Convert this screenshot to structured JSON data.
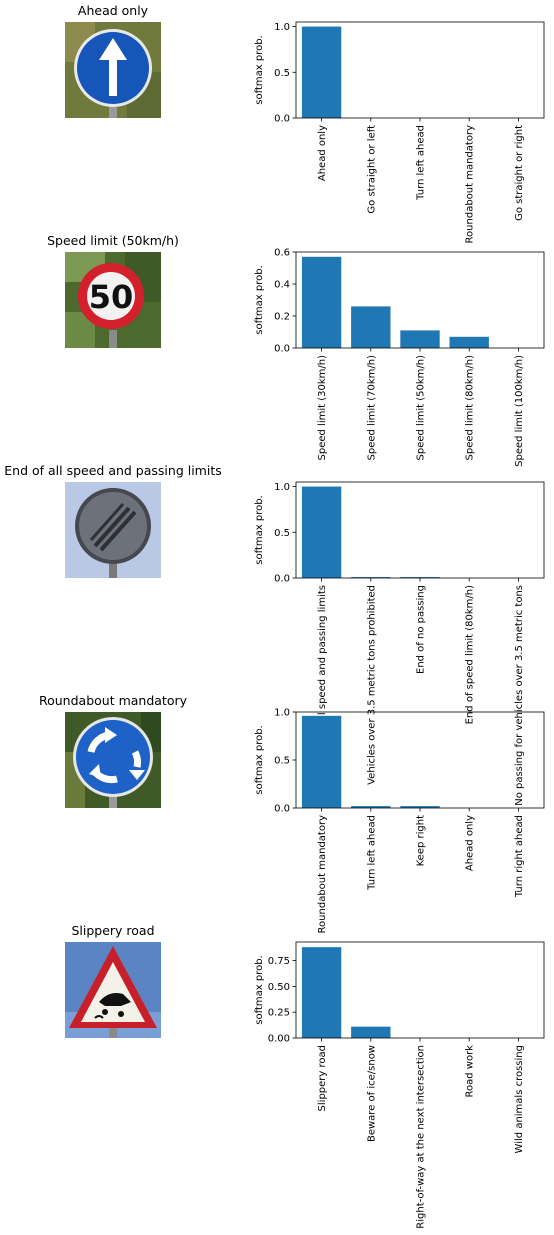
{
  "chart_data": [
    {
      "type": "bar",
      "image_title": "Ahead only",
      "sign_icon": "ahead-only-sign-icon",
      "ylabel": "softmax prob.",
      "ylim": [
        0,
        1.05
      ],
      "yticks": [
        0,
        0.5,
        1
      ],
      "ytick_labels": [
        "0.0",
        "0.5",
        "1.0"
      ],
      "categories": [
        "Ahead only",
        "Go straight or left",
        "Turn left ahead",
        "Roundabout mandatory",
        "Go straight or right"
      ],
      "values": [
        1.0,
        0.0,
        0.0,
        0.0,
        0.0
      ]
    },
    {
      "type": "bar",
      "image_title": "Speed limit (50km/h)",
      "sign_icon": "speed-limit-50-sign-icon",
      "ylabel": "softmax prob.",
      "ylim": [
        0,
        0.6
      ],
      "yticks": [
        0,
        0.2,
        0.4,
        0.6
      ],
      "ytick_labels": [
        "0.0",
        "0.2",
        "0.4",
        "0.6"
      ],
      "categories": [
        "Speed limit (30km/h)",
        "Speed limit (70km/h)",
        "Speed limit (50km/h)",
        "Speed limit (80km/h)",
        "Speed limit (100km/h)"
      ],
      "values": [
        0.57,
        0.26,
        0.11,
        0.07,
        0.0
      ]
    },
    {
      "type": "bar",
      "image_title": "End of all speed and passing limits",
      "sign_icon": "end-of-limits-sign-icon",
      "ylabel": "softmax prob.",
      "ylim": [
        0,
        1.05
      ],
      "yticks": [
        0,
        0.5,
        1
      ],
      "ytick_labels": [
        "0.0",
        "0.5",
        "1.0"
      ],
      "categories": [
        "End of all speed and passing limits",
        "Vehicles over 3.5 metric tons prohibited",
        "End of no passing",
        "End of speed limit (80km/h)",
        "No passing for vehicles over 3.5 metric tons"
      ],
      "values": [
        1.0,
        0.01,
        0.01,
        0.0,
        0.0
      ]
    },
    {
      "type": "bar",
      "image_title": "Roundabout mandatory",
      "sign_icon": "roundabout-sign-icon",
      "ylabel": "softmax prob.",
      "ylim": [
        0,
        1.0
      ],
      "yticks": [
        0,
        0.5,
        1
      ],
      "ytick_labels": [
        "0.0",
        "0.5",
        "1.0"
      ],
      "categories": [
        "Roundabout mandatory",
        "Turn left ahead",
        "Keep right",
        "Ahead only",
        "Turn right ahead"
      ],
      "values": [
        0.96,
        0.02,
        0.02,
        0.0,
        0.0
      ]
    },
    {
      "type": "bar",
      "image_title": "Slippery road",
      "sign_icon": "slippery-road-sign-icon",
      "ylabel": "softmax prob.",
      "ylim": [
        0,
        0.93
      ],
      "yticks": [
        0,
        0.25,
        0.5,
        0.75
      ],
      "ytick_labels": [
        "0.00",
        "0.25",
        "0.50",
        "0.75"
      ],
      "categories": [
        "Slippery road",
        "Beware of ice/snow",
        "Right-of-way at the next intersection",
        "Road work",
        "Wild animals crossing"
      ],
      "values": [
        0.88,
        0.11,
        0.0,
        0.0,
        0.0
      ]
    }
  ],
  "colors": {
    "bar": "#1f77b4",
    "axis": "#000000"
  }
}
